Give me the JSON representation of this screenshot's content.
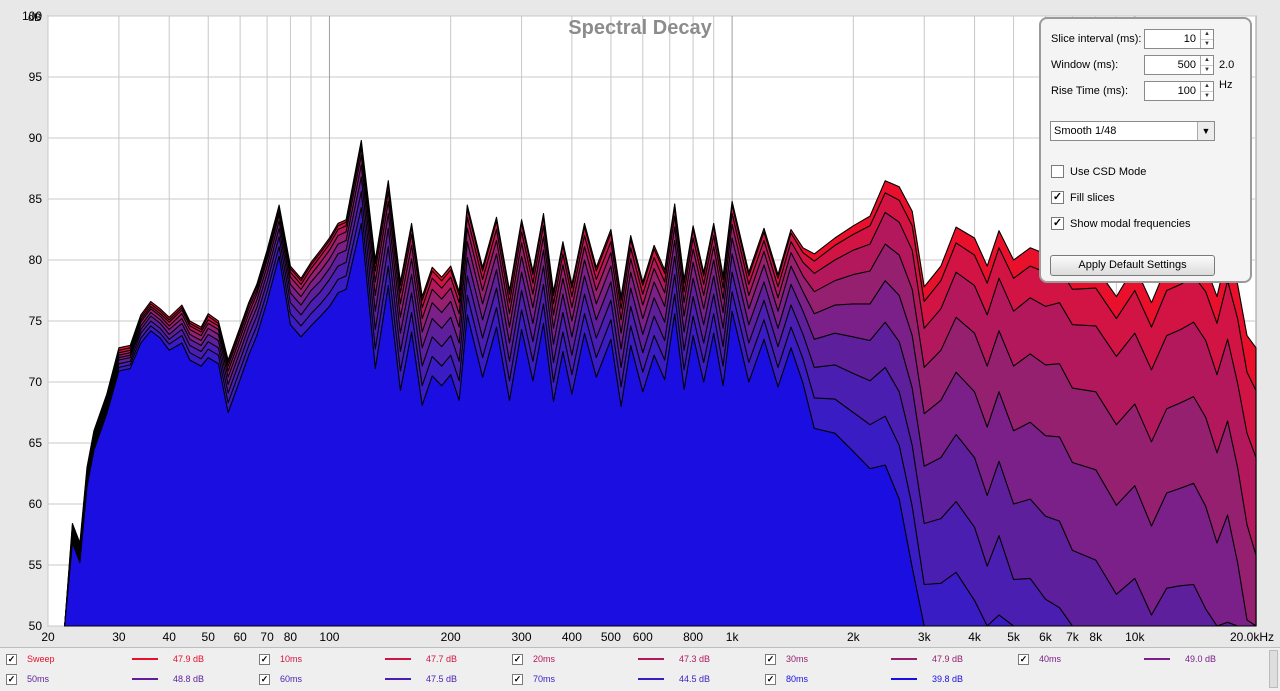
{
  "chart_data": {
    "type": "area",
    "title": "Spectral Decay",
    "ylabel": "dB",
    "x_unit_label": "20.0kHz",
    "xscale": "log",
    "xlim": [
      20,
      20000
    ],
    "ylim": [
      50,
      100
    ],
    "grid": true,
    "y_ticks": [
      "100",
      "95",
      "90",
      "85",
      "80",
      "75",
      "70",
      "65",
      "60",
      "55",
      "50"
    ],
    "x_ticks": [
      {
        "v": 20,
        "t": "20"
      },
      {
        "v": 30,
        "t": "30"
      },
      {
        "v": 40,
        "t": "40"
      },
      {
        "v": 50,
        "t": "50"
      },
      {
        "v": 60,
        "t": "60"
      },
      {
        "v": 70,
        "t": "70"
      },
      {
        "v": 80,
        "t": "80"
      },
      {
        "v": 100,
        "t": "100"
      },
      {
        "v": 200,
        "t": "200"
      },
      {
        "v": 300,
        "t": "300"
      },
      {
        "v": 400,
        "t": "400"
      },
      {
        "v": 500,
        "t": "500"
      },
      {
        "v": 600,
        "t": "600"
      },
      {
        "v": 800,
        "t": "800"
      },
      {
        "v": 1000,
        "t": "1k"
      },
      {
        "v": 2000,
        "t": "2k"
      },
      {
        "v": 3000,
        "t": "3k"
      },
      {
        "v": 4000,
        "t": "4k"
      },
      {
        "v": 5000,
        "t": "5k"
      },
      {
        "v": 6000,
        "t": "6k"
      },
      {
        "v": 7000,
        "t": "7k"
      },
      {
        "v": 8000,
        "t": "8k"
      },
      {
        "v": 10000,
        "t": "10k"
      }
    ],
    "x": [
      22,
      23,
      24,
      25,
      26,
      28,
      30,
      32,
      34,
      36,
      38,
      40,
      43,
      45,
      48,
      50,
      53,
      56,
      60,
      63,
      66,
      70,
      75,
      80,
      85,
      90,
      95,
      100,
      105,
      110,
      120,
      130,
      140,
      150,
      160,
      170,
      180,
      190,
      200,
      210,
      220,
      240,
      260,
      280,
      300,
      320,
      340,
      360,
      380,
      400,
      430,
      460,
      500,
      530,
      560,
      600,
      640,
      680,
      720,
      760,
      800,
      850,
      900,
      950,
      1000,
      1100,
      1200,
      1300,
      1400,
      1500,
      1600,
      1800,
      2000,
      2200,
      2400,
      2600,
      2800,
      3000,
      3300,
      3600,
      4000,
      4300,
      4600,
      5000,
      5500,
      6000,
      6500,
      7000,
      8000,
      9000,
      10000,
      11000,
      12000,
      13000,
      14000,
      15000,
      16000,
      17000,
      18000,
      19000,
      20000
    ],
    "series": [
      {
        "name": "Sweep",
        "color": "#e8102a",
        "values": [
          50,
          58.4,
          56.8,
          63,
          66,
          69,
          72.8,
          73,
          75.5,
          76.6,
          76,
          75.3,
          76.3,
          75,
          74.5,
          75.6,
          75,
          71.8,
          74.5,
          76.5,
          78,
          80.8,
          84.5,
          79.5,
          78.5,
          79.8,
          80.8,
          81.8,
          83,
          83.3,
          89.8,
          80,
          86.5,
          78.2,
          83,
          77,
          79.4,
          78.6,
          79.5,
          77.4,
          84.5,
          79.4,
          83.5,
          77.5,
          83.3,
          79.1,
          83.8,
          77.4,
          81.5,
          78,
          83,
          79.4,
          82.5,
          77,
          82,
          78.2,
          81.2,
          79.2,
          84.6,
          78.4,
          82.8,
          79,
          83,
          78.7,
          84.8,
          79,
          82.6,
          78.8,
          82.5,
          81,
          80.5,
          81.8,
          82.8,
          83.6,
          86.5,
          86,
          84,
          77.8,
          79.5,
          82.7,
          81.8,
          79.5,
          82.4,
          80,
          81,
          80.5,
          80.8,
          79.2,
          79.4,
          77,
          79.5,
          76.5,
          79.5,
          80,
          80.7,
          79.5,
          77,
          80.8,
          78,
          73.8,
          72.8
        ]
      },
      {
        "name": "10ms",
        "color": "#d11444",
        "values": [
          50,
          58.2,
          56.6,
          62.8,
          65.8,
          68.8,
          72.6,
          72.8,
          75.3,
          76.4,
          75.8,
          75.1,
          76.1,
          74.8,
          74.3,
          75.4,
          74.8,
          71.6,
          74.3,
          76.3,
          77.8,
          80.6,
          84.3,
          79.3,
          78.3,
          79.6,
          80.6,
          81.6,
          82.8,
          83.1,
          89.6,
          79.7,
          86.2,
          77.9,
          82.7,
          76.7,
          79.1,
          78.3,
          79.2,
          77.1,
          84.2,
          79.1,
          83.2,
          77.2,
          83,
          78.8,
          83.5,
          77.1,
          81.2,
          77.7,
          82.7,
          79.1,
          82.2,
          76.7,
          81.7,
          77.9,
          80.9,
          78.9,
          84.3,
          78.1,
          82.5,
          78.7,
          82.7,
          78.4,
          84.5,
          78.7,
          82.3,
          78.5,
          82.2,
          80.6,
          79.9,
          81.2,
          82.1,
          82.8,
          85.5,
          84.9,
          82.8,
          76.6,
          78.3,
          81.4,
          80.4,
          78.1,
          81,
          78.5,
          79.5,
          79,
          79.3,
          77.6,
          77.7,
          75.2,
          77.5,
          74.5,
          77.5,
          78,
          78.7,
          77.4,
          74.8,
          78.3,
          75.2,
          70.8,
          69.3
        ]
      },
      {
        "name": "20ms",
        "color": "#b4185c",
        "values": [
          50,
          58,
          56.4,
          62.6,
          65.6,
          68.6,
          72.4,
          72.6,
          75.1,
          76.2,
          75.6,
          74.9,
          75.9,
          74.6,
          74.1,
          75.1,
          74.6,
          71.3,
          74,
          76,
          77.5,
          80.3,
          84,
          79,
          78,
          79.3,
          80.3,
          81.3,
          82.5,
          82.8,
          89.2,
          79.1,
          85.6,
          77.3,
          82.1,
          76.1,
          78.5,
          77.7,
          78.6,
          76.5,
          83.5,
          78.4,
          82.5,
          76.5,
          82.3,
          78.1,
          82.8,
          76.4,
          80.5,
          77,
          82,
          78.4,
          81.5,
          76,
          81,
          77.2,
          80.2,
          78.2,
          83.6,
          77.4,
          81.8,
          78,
          82,
          77.7,
          83.8,
          78,
          81.6,
          77.8,
          81.5,
          79.8,
          78.9,
          80,
          80.8,
          81.3,
          83.9,
          83.1,
          80.8,
          74.4,
          76,
          79,
          77.9,
          75.5,
          78.5,
          75.8,
          76.9,
          76.2,
          76.5,
          74.7,
          74.6,
          72.1,
          74,
          71,
          73.8,
          74.3,
          74.9,
          73.4,
          70.6,
          73.5,
          69.9,
          65.8,
          63.8
        ]
      },
      {
        "name": "30ms",
        "color": "#962070",
        "values": [
          50,
          57.8,
          56.2,
          62.4,
          65.4,
          68.4,
          72.2,
          72.4,
          74.9,
          76,
          75.4,
          74.6,
          75.6,
          74.3,
          73.8,
          74.8,
          74.3,
          70.9,
          73.6,
          75.6,
          77.2,
          80,
          83.7,
          78.6,
          77.6,
          78.8,
          79.8,
          80.8,
          82,
          82.3,
          88.6,
          78.2,
          84.8,
          76.4,
          81.2,
          75.2,
          77.6,
          76.8,
          77.7,
          75.6,
          82.6,
          77.5,
          81.6,
          75.6,
          81.4,
          77.2,
          81.9,
          75.5,
          79.6,
          76.1,
          81.1,
          77.5,
          80.6,
          75.1,
          80.1,
          76.3,
          79.3,
          77.3,
          82.7,
          76.5,
          80.9,
          77.1,
          81.1,
          76.8,
          82.9,
          77.1,
          80.7,
          76.9,
          80.6,
          78.7,
          77.4,
          78.3,
          78.8,
          79.1,
          81.3,
          80.4,
          77.6,
          71.2,
          72.6,
          75.3,
          74,
          71.3,
          74.2,
          71.3,
          72.3,
          71.4,
          71.5,
          69.5,
          69.2,
          66.5,
          68.2,
          65.1,
          67.8,
          68.3,
          68.8,
          67.1,
          64.2,
          66.8,
          63,
          58.3,
          55.8
        ]
      },
      {
        "name": "40ms",
        "color": "#7a2088",
        "values": [
          50,
          57.6,
          56,
          62.2,
          65.2,
          68.2,
          72,
          72.2,
          74.6,
          75.7,
          75.1,
          74.3,
          75.2,
          73.9,
          73.4,
          74.4,
          73.9,
          70.4,
          73.1,
          75.1,
          76.7,
          79.5,
          83.2,
          78,
          77,
          78.2,
          79.1,
          80.1,
          81.3,
          81.6,
          87.8,
          77.1,
          83.8,
          75.3,
          80.1,
          74.1,
          76.5,
          75.7,
          76.6,
          74.5,
          81.5,
          76.4,
          80.5,
          74.5,
          80.3,
          76.1,
          80.8,
          74.4,
          78.5,
          75,
          80,
          76.4,
          79.5,
          74,
          79,
          75.2,
          78.2,
          76.2,
          81.6,
          75.4,
          79.8,
          76,
          80,
          75.7,
          81.8,
          76,
          79.6,
          75.8,
          79.5,
          77.4,
          75.6,
          76.3,
          76.4,
          76.4,
          78.3,
          77.1,
          73.8,
          67.4,
          68.5,
          70.8,
          69.2,
          66.3,
          69.2,
          66,
          66.7,
          65.6,
          65.5,
          63.4,
          62.8,
          59.9,
          61.5,
          58.2,
          60.9,
          61.3,
          61.7,
          59.8,
          56.8,
          59.1,
          55.2,
          50.5,
          50
        ]
      },
      {
        "name": "50ms",
        "color": "#5e1f9c",
        "values": [
          50,
          57.4,
          55.8,
          62,
          65,
          68,
          71.8,
          72,
          74.3,
          75.4,
          74.8,
          73.9,
          74.8,
          73.5,
          73,
          73.9,
          73.4,
          69.8,
          72.5,
          74.5,
          76.1,
          78.9,
          82.6,
          77.3,
          76.3,
          77.5,
          78.3,
          79.3,
          80.5,
          80.8,
          86.8,
          75.8,
          82.6,
          74,
          78.8,
          72.8,
          75.2,
          74.4,
          75.3,
          73.2,
          80.2,
          75.1,
          79.2,
          73.2,
          79,
          74.8,
          79.5,
          73.1,
          77.2,
          73.7,
          78.7,
          75.1,
          78.2,
          72.7,
          77.7,
          73.9,
          76.9,
          74.9,
          80.3,
          74.1,
          78.5,
          74.7,
          78.7,
          74.4,
          80.5,
          74.7,
          78.2,
          74.4,
          78,
          75.8,
          73.5,
          74,
          73.7,
          73.4,
          74.9,
          73.3,
          69.5,
          63.1,
          63.8,
          65.7,
          63.8,
          60.7,
          63.5,
          60,
          60.4,
          59,
          58.6,
          56.2,
          55.4,
          52.6,
          53.9,
          50.9,
          53.1,
          53.3,
          53.4,
          51.4,
          50,
          50.3,
          50,
          50,
          50
        ]
      },
      {
        "name": "60ms",
        "color": "#4a1eb0",
        "values": [
          50,
          57.2,
          55.6,
          61.8,
          64.8,
          67.8,
          71.5,
          71.7,
          74,
          75,
          74.4,
          73.5,
          74.3,
          73,
          72.5,
          73.3,
          72.8,
          69.1,
          71.8,
          73.8,
          75.4,
          78.2,
          81.9,
          76.5,
          75.5,
          76.6,
          77.4,
          78.4,
          79.5,
          79.8,
          85.6,
          74.3,
          81.1,
          72.5,
          77.3,
          71.3,
          73.7,
          72.9,
          73.8,
          71.7,
          78.7,
          73.6,
          77.7,
          71.7,
          77.5,
          73.3,
          78,
          71.6,
          75.7,
          72.2,
          77.2,
          73.6,
          76.7,
          71.2,
          76.2,
          72.4,
          75.4,
          73.4,
          78.8,
          72.6,
          77,
          73.2,
          77.2,
          72.9,
          79,
          73.2,
          76.7,
          72.9,
          76.3,
          73.9,
          71.2,
          71.4,
          70.7,
          70.1,
          71.2,
          69.2,
          64.8,
          58.4,
          58.8,
          60.2,
          58.1,
          54.9,
          57.4,
          53.8,
          53.9,
          52.2,
          51.5,
          50,
          50,
          50,
          50,
          50,
          50,
          50,
          50,
          50,
          50,
          50,
          50,
          50,
          50
        ]
      },
      {
        "name": "70ms",
        "color": "#3a1cc4",
        "values": [
          50,
          57,
          55.4,
          61.6,
          64.6,
          67.6,
          71.2,
          71.4,
          73.6,
          74.6,
          74,
          73.1,
          73.8,
          72.4,
          71.9,
          72.7,
          72.2,
          68.3,
          71,
          73,
          74.6,
          77.4,
          81.1,
          75.6,
          74.6,
          75.6,
          76.4,
          77.3,
          78.4,
          78.7,
          84.3,
          72.7,
          79.5,
          70.9,
          75.7,
          69.7,
          72.1,
          71.3,
          72.2,
          70.1,
          77.1,
          72,
          76.1,
          70.1,
          75.9,
          71.7,
          76.4,
          70,
          74.1,
          70.6,
          75.6,
          72,
          75.1,
          69.6,
          74.6,
          70.8,
          73.8,
          71.8,
          77.2,
          71,
          75.4,
          71.6,
          75.6,
          71.3,
          77.4,
          71.6,
          75.1,
          71.2,
          74.5,
          71.9,
          68.7,
          68.6,
          67.5,
          66.5,
          67.2,
          64.8,
          59.8,
          53.4,
          53.5,
          54.4,
          52.1,
          50,
          50.9,
          50,
          50,
          50,
          50,
          50,
          50,
          50,
          50,
          50,
          50,
          50,
          50,
          50,
          50,
          50,
          50,
          50,
          50
        ]
      },
      {
        "name": "80ms",
        "color": "#1a0ee0",
        "values": [
          50,
          56.8,
          55.2,
          61.4,
          64.4,
          67.4,
          70.9,
          71.1,
          73.2,
          74.2,
          73.6,
          72.6,
          73.2,
          71.8,
          71.3,
          72,
          71.5,
          67.5,
          70.2,
          72.2,
          73.8,
          76.6,
          80.3,
          74.7,
          73.7,
          74.6,
          75.4,
          76.2,
          77.3,
          77.6,
          83,
          71.1,
          77.9,
          69.3,
          74.1,
          68.1,
          70.5,
          69.7,
          70.6,
          68.5,
          75.5,
          70.4,
          74.5,
          68.5,
          74.3,
          70.1,
          74.8,
          68.4,
          72.5,
          69,
          74,
          70.4,
          73.5,
          68,
          73,
          69.2,
          72.2,
          70.2,
          75.6,
          69.4,
          73.8,
          70,
          74,
          69.7,
          75.8,
          70,
          73.5,
          69.6,
          72.8,
          69.9,
          66.2,
          65.8,
          64.3,
          62.9,
          63.2,
          60.4,
          54.8,
          50,
          50,
          50,
          50,
          50,
          50,
          50,
          50,
          50,
          50,
          50,
          50,
          50,
          50,
          50,
          50,
          50,
          50,
          50,
          50,
          50,
          50,
          50,
          50
        ]
      }
    ]
  },
  "legend": [
    {
      "name": "Sweep",
      "value": "47.9 dB",
      "color": "#e8102a"
    },
    {
      "name": "10ms",
      "value": "47.7 dB",
      "color": "#d11444"
    },
    {
      "name": "20ms",
      "value": "47.3 dB",
      "color": "#b4185c"
    },
    {
      "name": "30ms",
      "value": "47.9 dB",
      "color": "#962070"
    },
    {
      "name": "40ms",
      "value": "49.0 dB",
      "color": "#7a2088"
    },
    {
      "name": "50ms",
      "value": "48.8 dB",
      "color": "#5e1f9c"
    },
    {
      "name": "60ms",
      "value": "47.5 dB",
      "color": "#4a1eb0"
    },
    {
      "name": "70ms",
      "value": "44.5 dB",
      "color": "#3a1cc4"
    },
    {
      "name": "80ms",
      "value": "39.8 dB",
      "color": "#1a0ee0"
    }
  ],
  "controls": {
    "slice_interval_label": "Slice interval (ms):",
    "slice_interval_value": "10",
    "window_label": "Window (ms):",
    "window_value": "500",
    "window_hz": "2.0 Hz",
    "rise_time_label": "Rise Time (ms):",
    "rise_time_value": "100",
    "smoothing": "Smooth 1/48",
    "use_csd_label": "Use CSD Mode",
    "use_csd_checked": false,
    "fill_slices_label": "Fill slices",
    "fill_slices_checked": true,
    "show_modal_label": "Show modal frequencies",
    "show_modal_checked": true,
    "apply_label": "Apply Default Settings"
  },
  "colors": {
    "plot_bg": "#ffffff",
    "grid": "#c8c8c8",
    "outline": "#000000"
  }
}
